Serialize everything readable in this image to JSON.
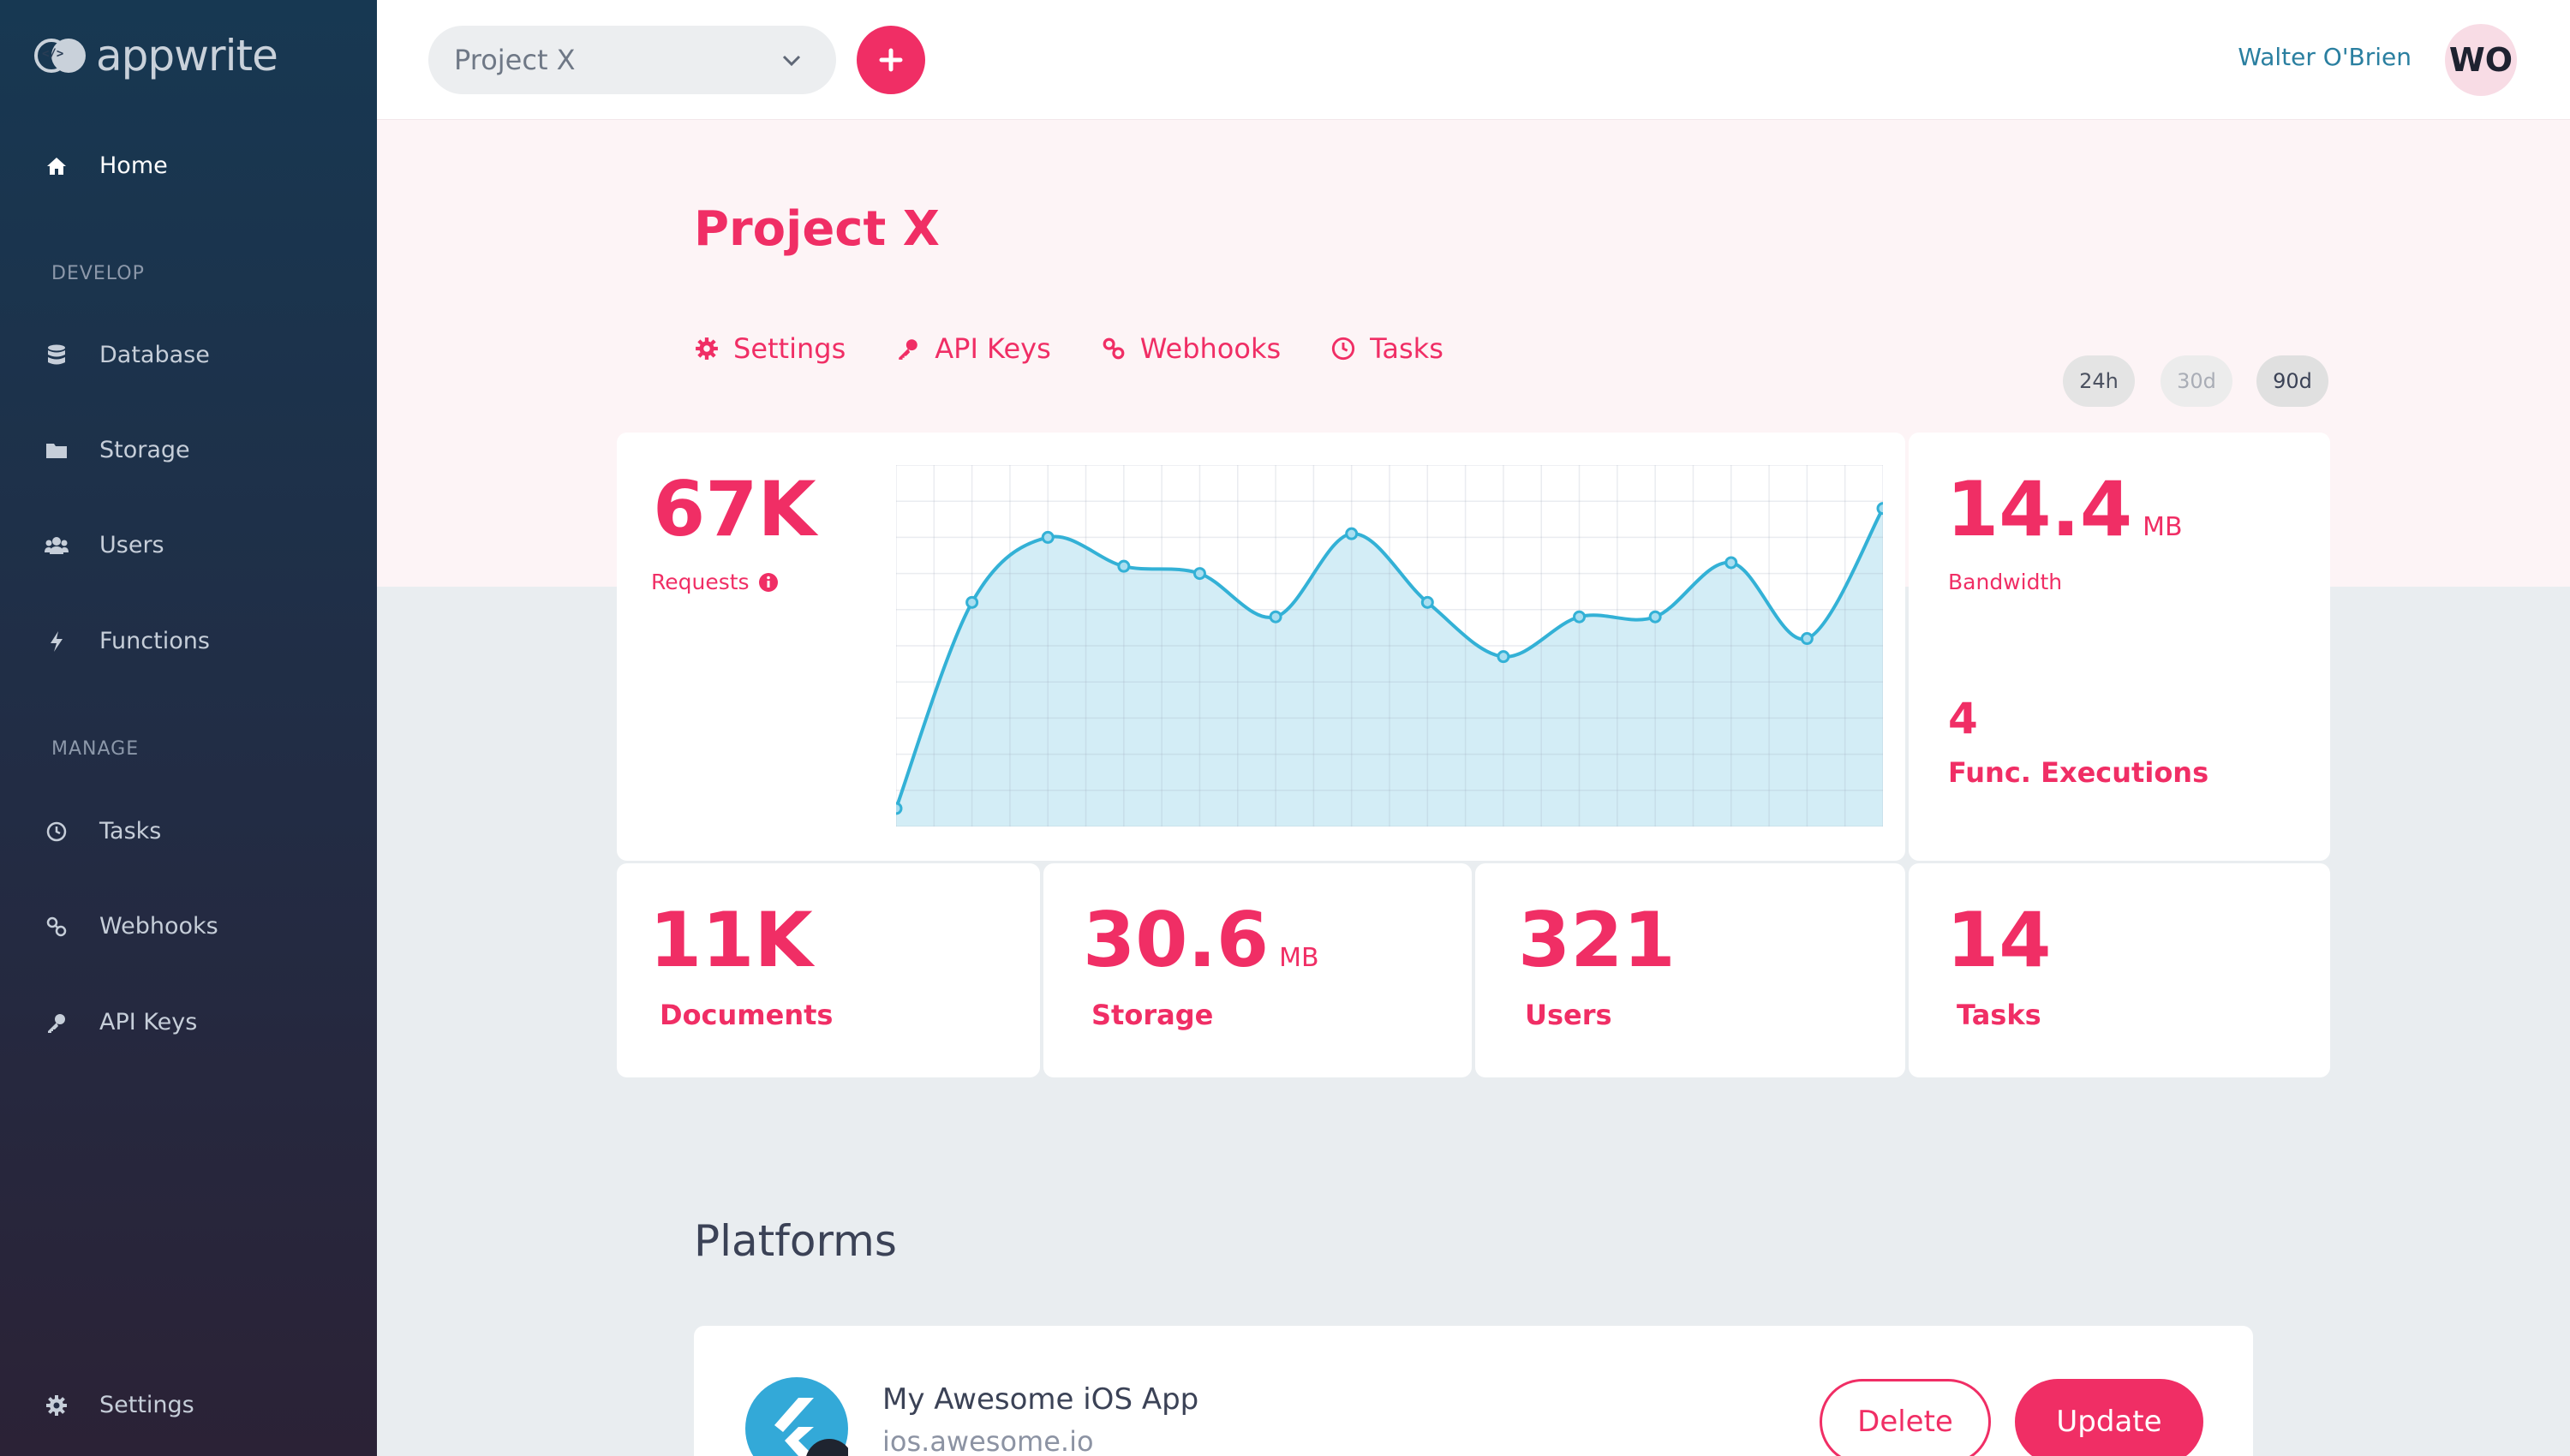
{
  "app": {
    "logo_text": "appwrite"
  },
  "sidebar": {
    "items": [
      {
        "label": "Home",
        "icon": "home-icon"
      },
      {
        "label": "Database",
        "icon": "database-icon"
      },
      {
        "label": "Storage",
        "icon": "folder-icon"
      },
      {
        "label": "Users",
        "icon": "users-icon"
      },
      {
        "label": "Functions",
        "icon": "bolt-icon"
      },
      {
        "label": "Tasks",
        "icon": "clock-icon"
      },
      {
        "label": "Webhooks",
        "icon": "link-icon"
      },
      {
        "label": "API Keys",
        "icon": "key-icon"
      },
      {
        "label": "Settings",
        "icon": "gear-icon"
      }
    ],
    "sections": {
      "develop": "DEVELOP",
      "manage": "MANAGE"
    }
  },
  "topbar": {
    "project_select_value": "Project X",
    "user_name": "Walter O'Brien",
    "avatar_initials": "WO"
  },
  "page": {
    "title": "Project X",
    "tabs": [
      {
        "label": "Settings",
        "icon": "gear-icon"
      },
      {
        "label": "API Keys",
        "icon": "key-icon"
      },
      {
        "label": "Webhooks",
        "icon": "link-icon"
      },
      {
        "label": "Tasks",
        "icon": "clock-icon"
      }
    ],
    "ranges": [
      "24h",
      "30d",
      "90d"
    ]
  },
  "stats": {
    "requests": {
      "value": "67K",
      "label": "Requests"
    },
    "bandwidth": {
      "value": "14.4",
      "unit": "MB",
      "label": "Bandwidth"
    },
    "executions": {
      "value": "4",
      "label": "Func. Executions"
    },
    "documents": {
      "value": "11K",
      "label": "Documents"
    },
    "storage": {
      "value": "30.6",
      "unit": "MB",
      "label": "Storage"
    },
    "users": {
      "value": "321",
      "label": "Users"
    },
    "tasks": {
      "value": "14",
      "label": "Tasks"
    }
  },
  "colors": {
    "accent": "#f02e65",
    "line": "#33b1d6",
    "fill": "#d3edf6"
  },
  "chart_data": {
    "type": "area",
    "x": [
      0,
      1,
      2,
      3,
      4,
      5,
      6,
      7,
      8,
      9,
      10,
      11,
      12,
      13
    ],
    "values": [
      5,
      62,
      80,
      72,
      70,
      58,
      81,
      62,
      47,
      58,
      58,
      73,
      52,
      88
    ],
    "ylim": [
      0,
      100
    ],
    "grid": true
  },
  "platforms": {
    "title": "Platforms",
    "items": [
      {
        "name": "My Awesome iOS App",
        "url": "ios.awesome.io",
        "badge": "iOS",
        "delete_label": "Delete",
        "update_label": "Update"
      }
    ]
  }
}
